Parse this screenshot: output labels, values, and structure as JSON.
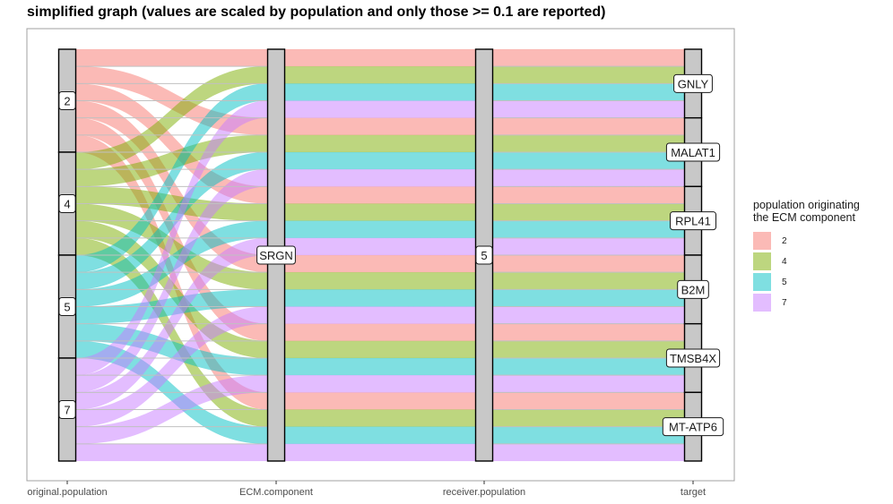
{
  "chart_data": {
    "type": "alluvial",
    "title": "simplified graph (values are scaled by population and only those >= 0.1 are reported)",
    "axes": [
      "original.population",
      "ECM.component",
      "receiver.population",
      "target"
    ],
    "nodes": {
      "original.population": [
        "2",
        "4",
        "5",
        "7"
      ],
      "ECM.component": [
        "SRGN"
      ],
      "receiver.population": [
        "5"
      ],
      "target": [
        "GNLY",
        "MALAT1",
        "RPL41",
        "B2M",
        "TMSB4X",
        "MT-ATP6"
      ]
    },
    "flow_value_each": 1,
    "flows": [
      {
        "origin": "2",
        "ecm": "SRGN",
        "receiver": "5",
        "target": "GNLY"
      },
      {
        "origin": "2",
        "ecm": "SRGN",
        "receiver": "5",
        "target": "MALAT1"
      },
      {
        "origin": "2",
        "ecm": "SRGN",
        "receiver": "5",
        "target": "RPL41"
      },
      {
        "origin": "2",
        "ecm": "SRGN",
        "receiver": "5",
        "target": "B2M"
      },
      {
        "origin": "2",
        "ecm": "SRGN",
        "receiver": "5",
        "target": "TMSB4X"
      },
      {
        "origin": "2",
        "ecm": "SRGN",
        "receiver": "5",
        "target": "MT-ATP6"
      },
      {
        "origin": "4",
        "ecm": "SRGN",
        "receiver": "5",
        "target": "GNLY"
      },
      {
        "origin": "4",
        "ecm": "SRGN",
        "receiver": "5",
        "target": "MALAT1"
      },
      {
        "origin": "4",
        "ecm": "SRGN",
        "receiver": "5",
        "target": "RPL41"
      },
      {
        "origin": "4",
        "ecm": "SRGN",
        "receiver": "5",
        "target": "B2M"
      },
      {
        "origin": "4",
        "ecm": "SRGN",
        "receiver": "5",
        "target": "TMSB4X"
      },
      {
        "origin": "4",
        "ecm": "SRGN",
        "receiver": "5",
        "target": "MT-ATP6"
      },
      {
        "origin": "5",
        "ecm": "SRGN",
        "receiver": "5",
        "target": "GNLY"
      },
      {
        "origin": "5",
        "ecm": "SRGN",
        "receiver": "5",
        "target": "MALAT1"
      },
      {
        "origin": "5",
        "ecm": "SRGN",
        "receiver": "5",
        "target": "RPL41"
      },
      {
        "origin": "5",
        "ecm": "SRGN",
        "receiver": "5",
        "target": "B2M"
      },
      {
        "origin": "5",
        "ecm": "SRGN",
        "receiver": "5",
        "target": "TMSB4X"
      },
      {
        "origin": "5",
        "ecm": "SRGN",
        "receiver": "5",
        "target": "MT-ATP6"
      },
      {
        "origin": "7",
        "ecm": "SRGN",
        "receiver": "5",
        "target": "GNLY"
      },
      {
        "origin": "7",
        "ecm": "SRGN",
        "receiver": "5",
        "target": "MALAT1"
      },
      {
        "origin": "7",
        "ecm": "SRGN",
        "receiver": "5",
        "target": "RPL41"
      },
      {
        "origin": "7",
        "ecm": "SRGN",
        "receiver": "5",
        "target": "B2M"
      },
      {
        "origin": "7",
        "ecm": "SRGN",
        "receiver": "5",
        "target": "TMSB4X"
      },
      {
        "origin": "7",
        "ecm": "SRGN",
        "receiver": "5",
        "target": "MT-ATP6"
      }
    ],
    "legend": {
      "title_lines": [
        "population originating",
        "the ECM component"
      ],
      "placement": "right",
      "items": [
        {
          "label": "2",
          "color": "#F8766D"
        },
        {
          "label": "4",
          "color": "#7CAE00"
        },
        {
          "label": "5",
          "color": "#00BFC4"
        },
        {
          "label": "7",
          "color": "#C77CFF"
        }
      ]
    },
    "grid": false
  }
}
